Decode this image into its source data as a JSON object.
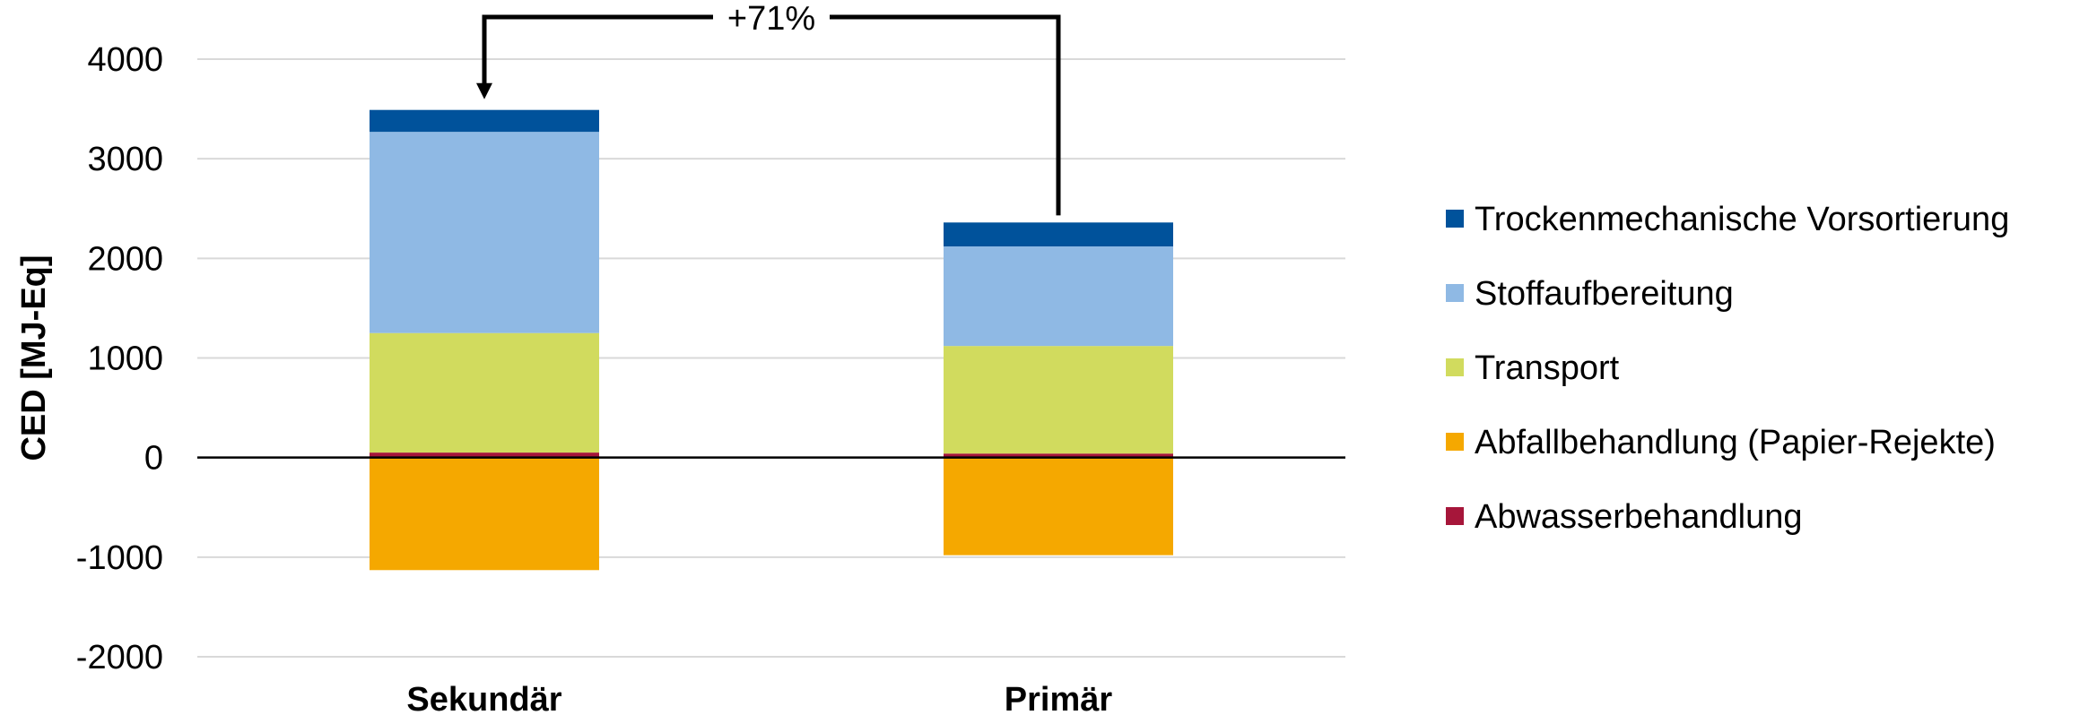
{
  "chart_data": {
    "type": "bar",
    "stacked": true,
    "ylabel": "CED [MJ-Eq]",
    "xlabel": "",
    "ylim": [
      -2000,
      4000
    ],
    "yticks": [
      4000,
      3000,
      2000,
      1000,
      0,
      -1000,
      -2000
    ],
    "grid": true,
    "legend_position": "right",
    "categories": [
      "Sekundär",
      "Primär"
    ],
    "series": [
      {
        "name": "Abwasserbehandlung",
        "color": "#A6163A",
        "values": [
          50,
          40
        ]
      },
      {
        "name": "Abfallbehandlung (Papier-Rejekte)",
        "color": "#F5A800",
        "values": [
          -1130,
          -980
        ]
      },
      {
        "name": "Transport",
        "color": "#D1DB5E",
        "values": [
          1200,
          1080
        ]
      },
      {
        "name": "Stoffaufbereitung",
        "color": "#8FB9E4",
        "values": [
          2020,
          1000
        ]
      },
      {
        "name": "Trockenmechanische Vorsortierung",
        "color": "#00529B",
        "values": [
          220,
          240
        ]
      }
    ],
    "legend_order": [
      "Trockenmechanische Vorsortierung",
      "Stoffaufbereitung",
      "Transport",
      "Abfallbehandlung (Papier-Rejekte)",
      "Abwasserbehandlung"
    ],
    "annotation": {
      "text": "+71%",
      "from": "Primär",
      "to": "Sekundär"
    }
  }
}
